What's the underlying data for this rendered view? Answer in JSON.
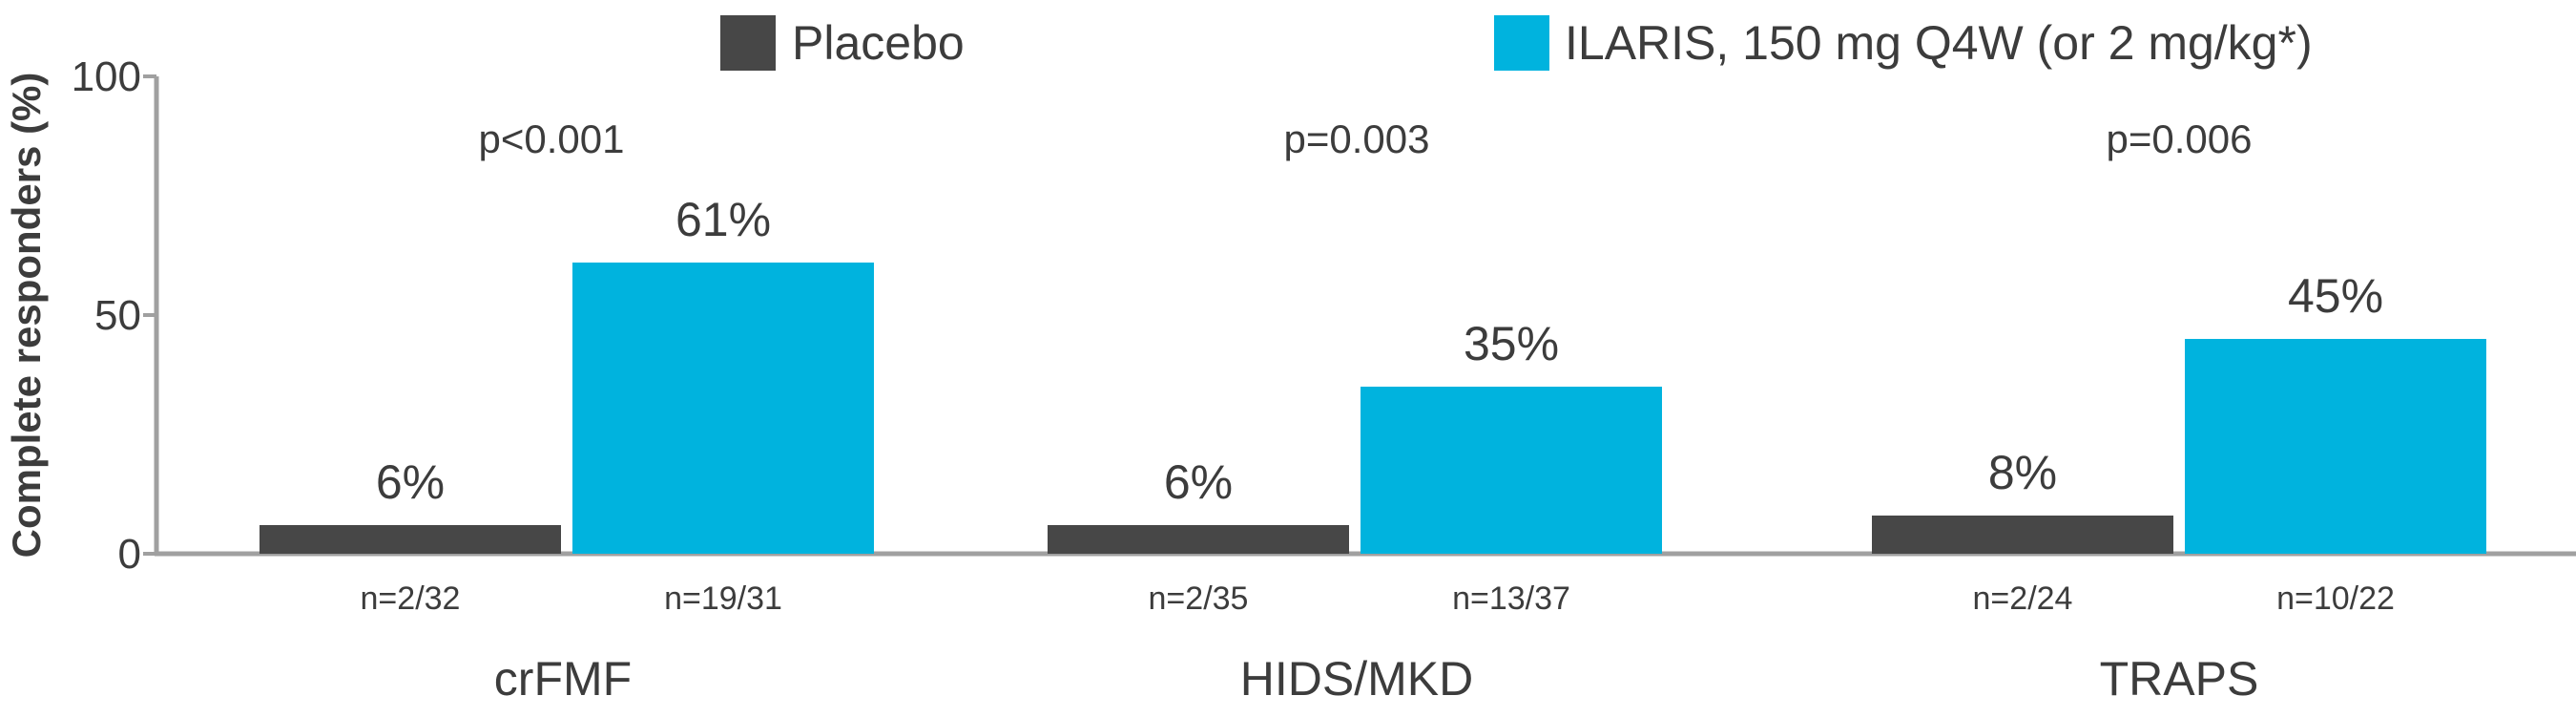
{
  "colors": {
    "placebo": "#474747",
    "ilaris": "#00b3de",
    "axis": "#a0a0a0",
    "text": "#3c3c3c"
  },
  "chart_data": {
    "type": "bar",
    "title": "",
    "xlabel": "",
    "ylabel": "Complete responders (%)",
    "ylim": [
      0,
      100
    ],
    "yticks": [
      0,
      50,
      100
    ],
    "grid": false,
    "legend_position": "top",
    "categories": [
      "crFMF",
      "HIDS/MKD",
      "TRAPS"
    ],
    "p_values": [
      "p<0.001",
      "p=0.003",
      "p=0.006"
    ],
    "series": [
      {
        "name": "Placebo",
        "color": "#474747",
        "values": [
          6,
          6,
          8
        ],
        "value_labels": [
          "6%",
          "6%",
          "8%"
        ],
        "n_labels": [
          "n=2/32",
          "n=2/35",
          "n=2/24"
        ]
      },
      {
        "name": "ILARIS, 150 mg Q4W (or 2 mg/kg*)",
        "color": "#00b3de",
        "values": [
          61,
          35,
          45
        ],
        "value_labels": [
          "61%",
          "35%",
          "45%"
        ],
        "n_labels": [
          "n=19/31",
          "n=13/37",
          "n=10/22"
        ]
      }
    ]
  }
}
